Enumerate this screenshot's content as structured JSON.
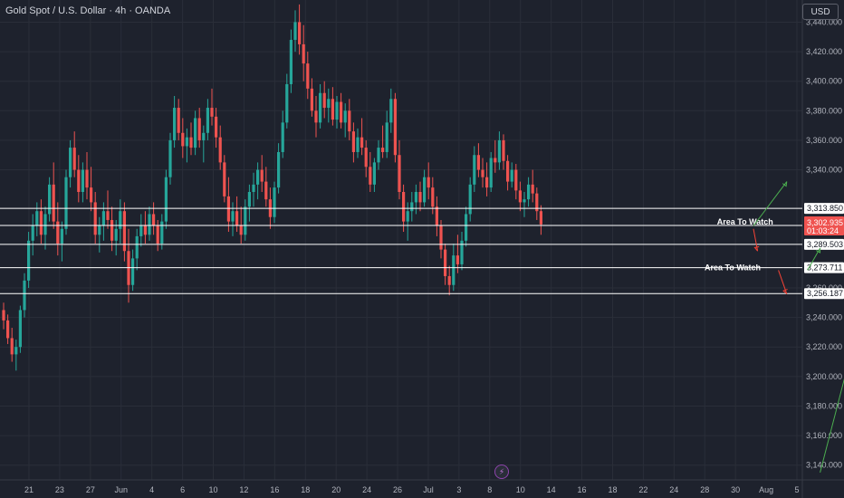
{
  "header": {
    "title": "Gold Spot / U.S. Dollar · 4h · OANDA",
    "currency": "USD"
  },
  "colors": {
    "bg": "#1e222d",
    "up": "#26a69a",
    "down": "#ef5350",
    "grid": "#2a2e39",
    "text": "#b2b5be",
    "price": "#ef5350",
    "level": "#ffffff",
    "arrowUp": "#4caf50",
    "arrowDown": "#f44336"
  },
  "chart_data": {
    "type": "candlestick",
    "symbol": "XAUUSD",
    "timeframe": "4h",
    "y_ticks": [
      3140,
      3160,
      3180,
      3200,
      3220,
      3240,
      3260,
      3340,
      3360,
      3380,
      3400,
      3420,
      3440
    ],
    "y_tick_labels": [
      "3,140.000",
      "3,160.000",
      "3,180.000",
      "3,200.000",
      "3,220.000",
      "3,240.000",
      "3,260.000",
      "3,340.000",
      "3,360.000",
      "3,380.000",
      "3,400.000",
      "3,420.000",
      "3,440.000"
    ],
    "x_tick_labels": [
      "21",
      "23",
      "27",
      "Jun",
      "4",
      "6",
      "10",
      "12",
      "16",
      "18",
      "20",
      "24",
      "26",
      "Jul",
      "3",
      "8",
      "10",
      "14",
      "16",
      "18",
      "22",
      "24",
      "28",
      "30",
      "Aug",
      "5"
    ],
    "ylim": [
      3130,
      3455
    ],
    "current_price": {
      "value": "3,302.935",
      "countdown": "01:03:24"
    },
    "levels": [
      {
        "value": 3313.85,
        "label": "3,313.850"
      },
      {
        "value": 3302.317,
        "label": "3,302.317"
      },
      {
        "value": 3289.503,
        "label": "3,289.503"
      },
      {
        "value": 3273.711,
        "label": "3,273.711"
      },
      {
        "value": 3256.187,
        "label": "3,256.187"
      }
    ],
    "annotations": [
      {
        "text": "Area To Watch",
        "x_idx": 178,
        "y": 3303
      },
      {
        "text": "Area To Watch",
        "x_idx": 175,
        "y": 3272
      }
    ],
    "arrows": [
      {
        "color": "up",
        "from": [
          180,
          3302
        ],
        "to": [
          188,
          3332
        ]
      },
      {
        "color": "down",
        "from": [
          180,
          3300
        ],
        "to": [
          181,
          3285
        ]
      },
      {
        "color": "up",
        "from": [
          193,
          3272
        ],
        "to": [
          196,
          3287
        ]
      },
      {
        "color": "down",
        "from": [
          186,
          3272
        ],
        "to": [
          188,
          3256
        ]
      },
      {
        "color": "up",
        "from": [
          196,
          3135
        ],
        "to": [
          205,
          3233
        ]
      }
    ],
    "ohlc": [
      [
        3245,
        3250,
        3232,
        3238
      ],
      [
        3238,
        3242,
        3222,
        3226
      ],
      [
        3226,
        3233,
        3210,
        3215
      ],
      [
        3215,
        3225,
        3204,
        3220
      ],
      [
        3220,
        3248,
        3216,
        3245
      ],
      [
        3245,
        3270,
        3240,
        3265
      ],
      [
        3265,
        3298,
        3260,
        3292
      ],
      [
        3292,
        3310,
        3282,
        3302
      ],
      [
        3302,
        3318,
        3295,
        3312
      ],
      [
        3312,
        3320,
        3290,
        3296
      ],
      [
        3296,
        3315,
        3286,
        3310
      ],
      [
        3310,
        3335,
        3305,
        3330
      ],
      [
        3330,
        3345,
        3300,
        3305
      ],
      [
        3305,
        3318,
        3282,
        3290
      ],
      [
        3290,
        3305,
        3278,
        3300
      ],
      [
        3300,
        3340,
        3296,
        3335
      ],
      [
        3335,
        3360,
        3328,
        3355
      ],
      [
        3355,
        3366,
        3335,
        3340
      ],
      [
        3340,
        3350,
        3318,
        3325
      ],
      [
        3325,
        3345,
        3318,
        3340
      ],
      [
        3340,
        3352,
        3320,
        3328
      ],
      [
        3328,
        3342,
        3312,
        3318
      ],
      [
        3318,
        3325,
        3290,
        3296
      ],
      [
        3296,
        3308,
        3284,
        3302
      ],
      [
        3302,
        3318,
        3292,
        3312
      ],
      [
        3312,
        3326,
        3300,
        3306
      ],
      [
        3306,
        3315,
        3285,
        3292
      ],
      [
        3292,
        3306,
        3282,
        3300
      ],
      [
        3300,
        3320,
        3290,
        3312
      ],
      [
        3312,
        3318,
        3278,
        3285
      ],
      [
        3285,
        3300,
        3250,
        3262
      ],
      [
        3262,
        3286,
        3258,
        3280
      ],
      [
        3280,
        3300,
        3272,
        3295
      ],
      [
        3295,
        3310,
        3288,
        3302
      ],
      [
        3302,
        3312,
        3290,
        3296
      ],
      [
        3296,
        3315,
        3292,
        3310
      ],
      [
        3310,
        3318,
        3296,
        3302
      ],
      [
        3302,
        3306,
        3285,
        3290
      ],
      [
        3290,
        3310,
        3286,
        3305
      ],
      [
        3305,
        3340,
        3300,
        3335
      ],
      [
        3335,
        3365,
        3330,
        3360
      ],
      [
        3360,
        3390,
        3355,
        3382
      ],
      [
        3382,
        3388,
        3360,
        3365
      ],
      [
        3365,
        3375,
        3348,
        3356
      ],
      [
        3356,
        3368,
        3345,
        3362
      ],
      [
        3362,
        3372,
        3350,
        3355
      ],
      [
        3355,
        3380,
        3350,
        3375
      ],
      [
        3375,
        3382,
        3355,
        3360
      ],
      [
        3360,
        3370,
        3345,
        3365
      ],
      [
        3365,
        3388,
        3360,
        3382
      ],
      [
        3382,
        3395,
        3370,
        3376
      ],
      [
        3376,
        3382,
        3355,
        3362
      ],
      [
        3362,
        3370,
        3340,
        3345
      ],
      [
        3345,
        3350,
        3318,
        3322
      ],
      [
        3322,
        3335,
        3298,
        3305
      ],
      [
        3305,
        3318,
        3295,
        3312
      ],
      [
        3312,
        3322,
        3298,
        3302
      ],
      [
        3302,
        3315,
        3290,
        3296
      ],
      [
        3296,
        3320,
        3292,
        3315
      ],
      [
        3315,
        3330,
        3305,
        3325
      ],
      [
        3325,
        3338,
        3315,
        3330
      ],
      [
        3330,
        3345,
        3320,
        3340
      ],
      [
        3340,
        3350,
        3325,
        3332
      ],
      [
        3332,
        3342,
        3315,
        3320
      ],
      [
        3320,
        3328,
        3300,
        3308
      ],
      [
        3308,
        3332,
        3304,
        3328
      ],
      [
        3328,
        3358,
        3324,
        3352
      ],
      [
        3352,
        3380,
        3348,
        3372
      ],
      [
        3372,
        3405,
        3368,
        3398
      ],
      [
        3398,
        3435,
        3392,
        3428
      ],
      [
        3428,
        3448,
        3420,
        3440
      ],
      [
        3440,
        3452,
        3418,
        3425
      ],
      [
        3425,
        3438,
        3400,
        3412
      ],
      [
        3412,
        3420,
        3388,
        3395
      ],
      [
        3395,
        3402,
        3376,
        3380
      ],
      [
        3380,
        3390,
        3362,
        3372
      ],
      [
        3372,
        3398,
        3368,
        3392
      ],
      [
        3392,
        3400,
        3375,
        3382
      ],
      [
        3382,
        3395,
        3372,
        3388
      ],
      [
        3388,
        3396,
        3370,
        3374
      ],
      [
        3374,
        3390,
        3368,
        3386
      ],
      [
        3386,
        3392,
        3368,
        3372
      ],
      [
        3372,
        3385,
        3362,
        3380
      ],
      [
        3380,
        3388,
        3360,
        3366
      ],
      [
        3366,
        3372,
        3345,
        3352
      ],
      [
        3352,
        3368,
        3348,
        3362
      ],
      [
        3362,
        3375,
        3350,
        3355
      ],
      [
        3355,
        3360,
        3335,
        3342
      ],
      [
        3342,
        3352,
        3325,
        3330
      ],
      [
        3330,
        3348,
        3325,
        3345
      ],
      [
        3345,
        3360,
        3340,
        3355
      ],
      [
        3355,
        3370,
        3348,
        3352
      ],
      [
        3352,
        3380,
        3348,
        3372
      ],
      [
        3372,
        3395,
        3365,
        3388
      ],
      [
        3388,
        3392,
        3345,
        3350
      ],
      [
        3350,
        3360,
        3320,
        3325
      ],
      [
        3325,
        3330,
        3298,
        3305
      ],
      [
        3305,
        3318,
        3292,
        3312
      ],
      [
        3312,
        3325,
        3305,
        3318
      ],
      [
        3318,
        3330,
        3310,
        3325
      ],
      [
        3325,
        3332,
        3312,
        3318
      ],
      [
        3318,
        3340,
        3315,
        3335
      ],
      [
        3335,
        3345,
        3320,
        3328
      ],
      [
        3328,
        3335,
        3310,
        3315
      ],
      [
        3315,
        3322,
        3295,
        3302
      ],
      [
        3302,
        3306,
        3280,
        3286
      ],
      [
        3286,
        3290,
        3262,
        3268
      ],
      [
        3268,
        3275,
        3255,
        3262
      ],
      [
        3262,
        3290,
        3258,
        3282
      ],
      [
        3282,
        3296,
        3270,
        3276
      ],
      [
        3276,
        3298,
        3272,
        3292
      ],
      [
        3292,
        3315,
        3288,
        3310
      ],
      [
        3310,
        3335,
        3305,
        3330
      ],
      [
        3330,
        3356,
        3325,
        3350
      ],
      [
        3350,
        3358,
        3335,
        3340
      ],
      [
        3340,
        3348,
        3328,
        3335
      ],
      [
        3335,
        3345,
        3322,
        3328
      ],
      [
        3328,
        3352,
        3325,
        3348
      ],
      [
        3348,
        3360,
        3338,
        3345
      ],
      [
        3345,
        3366,
        3340,
        3360
      ],
      [
        3360,
        3364,
        3340,
        3346
      ],
      [
        3346,
        3350,
        3326,
        3332
      ],
      [
        3332,
        3345,
        3328,
        3340
      ],
      [
        3340,
        3344,
        3320,
        3326
      ],
      [
        3326,
        3332,
        3312,
        3318
      ],
      [
        3318,
        3325,
        3308,
        3320
      ],
      [
        3320,
        3335,
        3315,
        3330
      ],
      [
        3330,
        3340,
        3318,
        3324
      ],
      [
        3324,
        3328,
        3306,
        3312
      ],
      [
        3312,
        3316,
        3296,
        3303
      ]
    ]
  }
}
